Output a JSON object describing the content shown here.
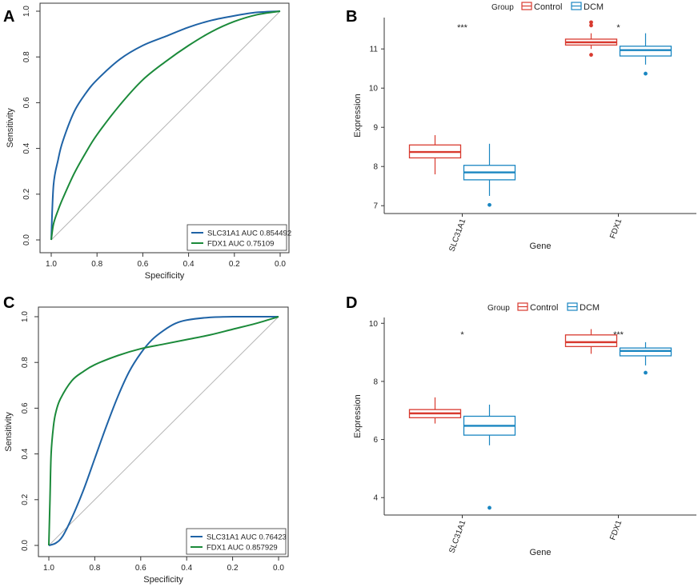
{
  "colors": {
    "blue": "#1f63a6",
    "green": "#1b8a3a",
    "control": "#d83a2f",
    "dcm": "#1a86c1",
    "diag": "#b5b5b5",
    "axis": "#333333"
  },
  "panels": {
    "A": {
      "label": "A"
    },
    "B": {
      "label": "B"
    },
    "C": {
      "label": "C"
    },
    "D": {
      "label": "D"
    }
  },
  "chart_data": [
    {
      "panel": "A",
      "type": "line",
      "title": "",
      "xlabel": "Specificity",
      "ylabel": "Sensitivity",
      "xlim": [
        1.0,
        0.0
      ],
      "ylim": [
        0.0,
        1.0
      ],
      "x_ticks": [
        "1.0",
        "0.8",
        "0.6",
        "0.4",
        "0.2",
        "0.0"
      ],
      "y_ticks": [
        "0.0",
        "0.2",
        "0.4",
        "0.6",
        "0.8",
        "1.0"
      ],
      "legend": {
        "position": "bottom-right",
        "entries": [
          "SLC31A1 AUC 0.854492",
          "FDX1 AUC 0.75109"
        ]
      },
      "series": [
        {
          "name": "SLC31A1 AUC 0.854492",
          "color_key": "blue",
          "x": [
            1.0,
            0.99,
            0.97,
            0.95,
            0.9,
            0.85,
            0.8,
            0.7,
            0.6,
            0.5,
            0.4,
            0.3,
            0.2,
            0.1,
            0.0
          ],
          "y": [
            0.0,
            0.24,
            0.35,
            0.43,
            0.56,
            0.64,
            0.7,
            0.79,
            0.85,
            0.89,
            0.93,
            0.96,
            0.98,
            0.995,
            1.0
          ]
        },
        {
          "name": "FDX1 AUC 0.75109",
          "color_key": "green",
          "x": [
            1.0,
            0.99,
            0.97,
            0.95,
            0.9,
            0.85,
            0.8,
            0.7,
            0.6,
            0.5,
            0.4,
            0.3,
            0.2,
            0.1,
            0.0
          ],
          "y": [
            0.0,
            0.07,
            0.13,
            0.18,
            0.29,
            0.38,
            0.46,
            0.59,
            0.7,
            0.78,
            0.85,
            0.91,
            0.955,
            0.985,
            1.0
          ]
        }
      ]
    },
    {
      "panel": "B",
      "type": "box",
      "xlabel": "Gene",
      "ylabel": "Expression",
      "ylim": [
        6.8,
        11.8
      ],
      "y_ticks": [
        7,
        8,
        9,
        10,
        11
      ],
      "categories": [
        "SLC31A1",
        "FDX1"
      ],
      "legend_title": "Group",
      "legend": [
        "Control",
        "DCM"
      ],
      "significance": [
        "***",
        "*"
      ],
      "boxes": [
        {
          "gene": "SLC31A1",
          "group": "Control",
          "min": 7.8,
          "q1": 8.22,
          "median": 8.37,
          "q3": 8.55,
          "max": 8.8,
          "outliers": []
        },
        {
          "gene": "SLC31A1",
          "group": "DCM",
          "min": 7.25,
          "q1": 7.66,
          "median": 7.85,
          "q3": 8.03,
          "max": 8.58,
          "outliers": [
            7.02
          ]
        },
        {
          "gene": "FDX1",
          "group": "Control",
          "min": 11.0,
          "q1": 11.1,
          "median": 11.17,
          "q3": 11.25,
          "max": 11.4,
          "outliers": [
            11.68,
            11.6,
            10.85
          ]
        },
        {
          "gene": "FDX1",
          "group": "DCM",
          "min": 10.6,
          "q1": 10.82,
          "median": 10.97,
          "q3": 11.07,
          "max": 11.4,
          "outliers": [
            10.37
          ]
        }
      ]
    },
    {
      "panel": "C",
      "type": "line",
      "title": "",
      "xlabel": "Specificity",
      "ylabel": "Sensitivity",
      "xlim": [
        1.0,
        0.0
      ],
      "ylim": [
        0.0,
        1.0
      ],
      "x_ticks": [
        "1.0",
        "0.8",
        "0.6",
        "0.4",
        "0.2",
        "0.0"
      ],
      "y_ticks": [
        "0.0",
        "0.2",
        "0.4",
        "0.6",
        "0.8",
        "1.0"
      ],
      "legend": {
        "position": "bottom-right",
        "entries": [
          "SLC31A1 AUC 0.76423",
          "FDX1 AUC 0.857929"
        ]
      },
      "series": [
        {
          "name": "SLC31A1 AUC 0.76423",
          "color_key": "blue",
          "x": [
            1.0,
            0.97,
            0.94,
            0.9,
            0.85,
            0.8,
            0.75,
            0.7,
            0.65,
            0.6,
            0.55,
            0.5,
            0.45,
            0.4,
            0.3,
            0.2,
            0.1,
            0.0
          ],
          "y": [
            0.0,
            0.01,
            0.04,
            0.12,
            0.24,
            0.38,
            0.52,
            0.65,
            0.76,
            0.84,
            0.9,
            0.94,
            0.97,
            0.985,
            0.997,
            1.0,
            1.0,
            1.0
          ]
        },
        {
          "name": "FDX1 AUC 0.857929",
          "color_key": "green",
          "x": [
            1.0,
            0.995,
            0.99,
            0.98,
            0.97,
            0.95,
            0.9,
            0.85,
            0.8,
            0.7,
            0.6,
            0.5,
            0.4,
            0.3,
            0.2,
            0.1,
            0.0
          ],
          "y": [
            0.0,
            0.2,
            0.4,
            0.52,
            0.58,
            0.64,
            0.72,
            0.76,
            0.79,
            0.83,
            0.86,
            0.88,
            0.9,
            0.92,
            0.945,
            0.97,
            1.0
          ]
        }
      ]
    },
    {
      "panel": "D",
      "type": "box",
      "xlabel": "Gene",
      "ylabel": "Expression",
      "ylim": [
        3.4,
        10.2
      ],
      "y_ticks": [
        4,
        6,
        8,
        10
      ],
      "categories": [
        "SLC31A1",
        "FDX1"
      ],
      "legend_title": "Group",
      "legend": [
        "Control",
        "DCM"
      ],
      "significance": [
        "*",
        "***"
      ],
      "boxes": [
        {
          "gene": "SLC31A1",
          "group": "Control",
          "min": 6.55,
          "q1": 6.75,
          "median": 6.9,
          "q3": 7.03,
          "max": 7.45,
          "outliers": []
        },
        {
          "gene": "SLC31A1",
          "group": "DCM",
          "min": 5.8,
          "q1": 6.15,
          "median": 6.47,
          "q3": 6.8,
          "max": 7.2,
          "outliers": [
            3.65
          ]
        },
        {
          "gene": "FDX1",
          "group": "Control",
          "min": 8.95,
          "q1": 9.2,
          "median": 9.35,
          "q3": 9.6,
          "max": 9.8,
          "outliers": []
        },
        {
          "gene": "FDX1",
          "group": "DCM",
          "min": 8.55,
          "q1": 8.88,
          "median": 9.05,
          "q3": 9.15,
          "max": 9.35,
          "outliers": [
            8.3
          ]
        }
      ]
    }
  ]
}
